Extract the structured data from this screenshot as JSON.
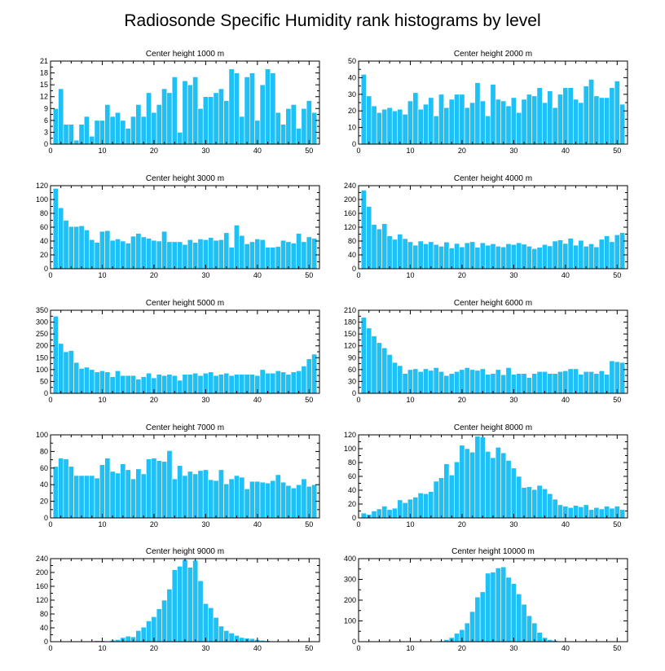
{
  "figure_title": "Radiosonde Specific Humidity rank histograms by level",
  "colors": {
    "bar": "#1ec0f5",
    "axis": "#000000",
    "background": "#ffffff"
  },
  "chart_data": [
    {
      "type": "bar",
      "title": "Center height 1000 m",
      "x": [
        1,
        2,
        3,
        4,
        5,
        6,
        7,
        8,
        9,
        10,
        11,
        12,
        13,
        14,
        15,
        16,
        17,
        18,
        19,
        20,
        21,
        22,
        23,
        24,
        25,
        26,
        27,
        28,
        29,
        30,
        31,
        32,
        33,
        34,
        35,
        36,
        37,
        38,
        39,
        40,
        41,
        42,
        43,
        44,
        45,
        46,
        47,
        48,
        49,
        50,
        51
      ],
      "values": [
        9,
        14,
        5,
        5,
        1,
        5,
        7,
        2,
        6,
        6,
        10,
        7,
        8,
        6,
        4,
        7,
        10,
        7,
        13,
        8,
        10,
        14,
        13,
        17,
        3,
        16,
        15,
        17,
        9,
        12,
        12,
        13,
        14,
        11,
        19,
        18,
        7,
        17,
        18,
        6,
        15,
        19,
        18,
        8,
        5,
        9,
        10,
        4,
        9,
        11,
        8
      ],
      "xlim": [
        0,
        52
      ],
      "ylim": [
        0,
        21
      ],
      "xticks": [
        0,
        10,
        20,
        30,
        40,
        50
      ],
      "yticks": [
        0,
        3,
        6,
        9,
        12,
        15,
        18,
        21
      ]
    },
    {
      "type": "bar",
      "title": "Center height 2000 m",
      "x": [
        1,
        2,
        3,
        4,
        5,
        6,
        7,
        8,
        9,
        10,
        11,
        12,
        13,
        14,
        15,
        16,
        17,
        18,
        19,
        20,
        21,
        22,
        23,
        24,
        25,
        26,
        27,
        28,
        29,
        30,
        31,
        32,
        33,
        34,
        35,
        36,
        37,
        38,
        39,
        40,
        41,
        42,
        43,
        44,
        45,
        46,
        47,
        48,
        49,
        50,
        51
      ],
      "values": [
        42,
        29,
        23,
        19,
        21,
        22,
        20,
        21,
        18,
        26,
        31,
        21,
        24,
        28,
        17,
        30,
        22,
        27,
        30,
        30,
        22,
        25,
        37,
        26,
        17,
        36,
        27,
        26,
        23,
        28,
        19,
        27,
        30,
        29,
        34,
        25,
        32,
        22,
        30,
        34,
        34,
        27,
        25,
        35,
        39,
        29,
        28,
        28,
        34,
        38,
        24
      ],
      "xlim": [
        0,
        52
      ],
      "ylim": [
        0,
        50
      ],
      "xticks": [
        0,
        10,
        20,
        30,
        40,
        50
      ],
      "yticks": [
        0,
        10,
        20,
        30,
        40,
        50
      ]
    },
    {
      "type": "bar",
      "title": "Center height 3000 m",
      "x": [
        1,
        2,
        3,
        4,
        5,
        6,
        7,
        8,
        9,
        10,
        11,
        12,
        13,
        14,
        15,
        16,
        17,
        18,
        19,
        20,
        21,
        22,
        23,
        24,
        25,
        26,
        27,
        28,
        29,
        30,
        31,
        32,
        33,
        34,
        35,
        36,
        37,
        38,
        39,
        40,
        41,
        42,
        43,
        44,
        45,
        46,
        47,
        48,
        49,
        50,
        51
      ],
      "values": [
        116,
        88,
        70,
        61,
        61,
        62,
        56,
        42,
        38,
        54,
        55,
        41,
        43,
        40,
        37,
        47,
        51,
        46,
        44,
        41,
        40,
        54,
        39,
        39,
        39,
        35,
        42,
        38,
        43,
        42,
        45,
        41,
        42,
        52,
        31,
        63,
        48,
        36,
        39,
        43,
        42,
        31,
        31,
        32,
        41,
        39,
        37,
        51,
        39,
        46,
        44
      ],
      "xlim": [
        0,
        52
      ],
      "ylim": [
        0,
        120
      ],
      "xticks": [
        0,
        10,
        20,
        30,
        40,
        50
      ],
      "yticks": [
        0,
        20,
        40,
        60,
        80,
        100,
        120
      ]
    },
    {
      "type": "bar",
      "title": "Center height 4000 m",
      "x": [
        1,
        2,
        3,
        4,
        5,
        6,
        7,
        8,
        9,
        10,
        11,
        12,
        13,
        14,
        15,
        16,
        17,
        18,
        19,
        20,
        21,
        22,
        23,
        24,
        25,
        26,
        27,
        28,
        29,
        30,
        31,
        32,
        33,
        34,
        35,
        36,
        37,
        38,
        39,
        40,
        41,
        42,
        43,
        44,
        45,
        46,
        47,
        48,
        49,
        50,
        51
      ],
      "values": [
        227,
        180,
        128,
        115,
        130,
        95,
        85,
        100,
        87,
        78,
        68,
        80,
        72,
        78,
        70,
        65,
        77,
        60,
        73,
        63,
        75,
        78,
        62,
        75,
        68,
        72,
        65,
        63,
        72,
        70,
        75,
        71,
        65,
        58,
        62,
        70,
        66,
        80,
        83,
        73,
        88,
        68,
        82,
        65,
        72,
        63,
        85,
        95,
        78,
        98,
        104
      ],
      "xlim": [
        0,
        52
      ],
      "ylim": [
        0,
        240
      ],
      "xticks": [
        0,
        10,
        20,
        30,
        40,
        50
      ],
      "yticks": [
        0,
        40,
        80,
        120,
        160,
        200,
        240
      ]
    },
    {
      "type": "bar",
      "title": "Center height 5000 m",
      "x": [
        1,
        2,
        3,
        4,
        5,
        6,
        7,
        8,
        9,
        10,
        11,
        12,
        13,
        14,
        15,
        16,
        17,
        18,
        19,
        20,
        21,
        22,
        23,
        24,
        25,
        26,
        27,
        28,
        29,
        30,
        31,
        32,
        33,
        34,
        35,
        36,
        37,
        38,
        39,
        40,
        41,
        42,
        43,
        44,
        45,
        46,
        47,
        48,
        49,
        50,
        51
      ],
      "values": [
        325,
        210,
        175,
        180,
        130,
        105,
        110,
        100,
        90,
        95,
        90,
        70,
        95,
        75,
        75,
        75,
        60,
        70,
        85,
        65,
        80,
        75,
        80,
        75,
        55,
        80,
        80,
        85,
        75,
        85,
        90,
        75,
        80,
        85,
        75,
        80,
        80,
        80,
        80,
        75,
        100,
        85,
        85,
        95,
        90,
        80,
        90,
        95,
        115,
        145,
        165
      ],
      "xlim": [
        0,
        52
      ],
      "ylim": [
        0,
        350
      ],
      "xticks": [
        0,
        10,
        20,
        30,
        40,
        50
      ],
      "yticks": [
        0,
        50,
        100,
        150,
        200,
        250,
        300,
        350
      ]
    },
    {
      "type": "bar",
      "title": "Center height 6000 m",
      "x": [
        1,
        2,
        3,
        4,
        5,
        6,
        7,
        8,
        9,
        10,
        11,
        12,
        13,
        14,
        15,
        16,
        17,
        18,
        19,
        20,
        21,
        22,
        23,
        24,
        25,
        26,
        27,
        28,
        29,
        30,
        31,
        32,
        33,
        34,
        35,
        36,
        37,
        38,
        39,
        40,
        41,
        42,
        43,
        44,
        45,
        46,
        47,
        48,
        49,
        50,
        51
      ],
      "values": [
        192,
        165,
        145,
        128,
        115,
        98,
        78,
        70,
        50,
        60,
        62,
        55,
        62,
        58,
        65,
        55,
        45,
        50,
        55,
        60,
        65,
        60,
        58,
        62,
        48,
        50,
        60,
        47,
        65,
        48,
        50,
        50,
        40,
        50,
        55,
        55,
        50,
        50,
        55,
        57,
        62,
        62,
        48,
        55,
        55,
        50,
        57,
        48,
        82,
        80,
        78
      ],
      "xlim": [
        0,
        52
      ],
      "ylim": [
        0,
        210
      ],
      "xticks": [
        0,
        10,
        20,
        30,
        40,
        50
      ],
      "yticks": [
        0,
        30,
        60,
        90,
        120,
        150,
        180,
        210
      ]
    },
    {
      "type": "bar",
      "title": "Center height 7000 m",
      "x": [
        1,
        2,
        3,
        4,
        5,
        6,
        7,
        8,
        9,
        10,
        11,
        12,
        13,
        14,
        15,
        16,
        17,
        18,
        19,
        20,
        21,
        22,
        23,
        24,
        25,
        26,
        27,
        28,
        29,
        30,
        31,
        32,
        33,
        34,
        35,
        36,
        37,
        38,
        39,
        40,
        41,
        42,
        43,
        44,
        45,
        46,
        47,
        48,
        49,
        50,
        51
      ],
      "values": [
        62,
        72,
        71,
        62,
        51,
        51,
        51,
        51,
        48,
        64,
        72,
        56,
        54,
        65,
        58,
        47,
        59,
        53,
        71,
        72,
        69,
        68,
        81,
        47,
        63,
        51,
        56,
        53,
        57,
        58,
        46,
        45,
        58,
        41,
        47,
        51,
        49,
        35,
        44,
        44,
        43,
        42,
        45,
        52,
        43,
        39,
        36,
        40,
        47,
        38,
        40
      ],
      "xlim": [
        0,
        52
      ],
      "ylim": [
        0,
        100
      ],
      "xticks": [
        0,
        10,
        20,
        30,
        40,
        50
      ],
      "yticks": [
        0,
        20,
        40,
        60,
        80,
        100
      ]
    },
    {
      "type": "bar",
      "title": "Center height 8000 m",
      "x": [
        1,
        2,
        3,
        4,
        5,
        6,
        7,
        8,
        9,
        10,
        11,
        12,
        13,
        14,
        15,
        16,
        17,
        18,
        19,
        20,
        21,
        22,
        23,
        24,
        25,
        26,
        27,
        28,
        29,
        30,
        31,
        32,
        33,
        34,
        35,
        36,
        37,
        38,
        39,
        40,
        41,
        42,
        43,
        44,
        45,
        46,
        47,
        48,
        49,
        50,
        51
      ],
      "values": [
        7,
        5,
        10,
        13,
        17,
        12,
        14,
        26,
        22,
        27,
        30,
        36,
        35,
        38,
        53,
        58,
        78,
        62,
        81,
        105,
        100,
        95,
        118,
        117,
        96,
        87,
        102,
        94,
        83,
        72,
        60,
        44,
        45,
        41,
        47,
        42,
        35,
        27,
        19,
        17,
        15,
        18,
        16,
        19,
        12,
        15,
        13,
        17,
        14,
        17,
        12
      ],
      "xlim": [
        0,
        52
      ],
      "ylim": [
        0,
        120
      ],
      "xticks": [
        0,
        10,
        20,
        30,
        40,
        50
      ],
      "yticks": [
        0,
        20,
        40,
        60,
        80,
        100,
        120
      ]
    },
    {
      "type": "bar",
      "title": "Center height 9000 m",
      "x": [
        1,
        2,
        3,
        4,
        5,
        6,
        7,
        8,
        9,
        10,
        11,
        12,
        13,
        14,
        15,
        16,
        17,
        18,
        19,
        20,
        21,
        22,
        23,
        24,
        25,
        26,
        27,
        28,
        29,
        30,
        31,
        32,
        33,
        34,
        35,
        36,
        37,
        38,
        39,
        40,
        41,
        42,
        43,
        44,
        45,
        46,
        47,
        48,
        49,
        50,
        51
      ],
      "values": [
        0,
        0,
        0,
        1,
        2,
        2,
        1,
        2,
        3,
        3,
        2,
        4,
        6,
        12,
        16,
        14,
        32,
        42,
        60,
        72,
        95,
        120,
        152,
        208,
        218,
        237,
        215,
        235,
        176,
        110,
        98,
        70,
        45,
        32,
        25,
        18,
        12,
        10,
        9,
        6,
        4,
        3,
        2,
        2,
        1,
        1,
        0,
        0,
        0,
        0,
        0
      ],
      "xlim": [
        0,
        52
      ],
      "ylim": [
        0,
        240
      ],
      "xticks": [
        0,
        10,
        20,
        30,
        40,
        50
      ],
      "yticks": [
        0,
        40,
        80,
        120,
        160,
        200,
        240
      ]
    },
    {
      "type": "bar",
      "title": "Center height 10000 m",
      "x": [
        1,
        2,
        3,
        4,
        5,
        6,
        7,
        8,
        9,
        10,
        11,
        12,
        13,
        14,
        15,
        16,
        17,
        18,
        19,
        20,
        21,
        22,
        23,
        24,
        25,
        26,
        27,
        28,
        29,
        30,
        31,
        32,
        33,
        34,
        35,
        36,
        37,
        38,
        39,
        40,
        41,
        42,
        43,
        44,
        45,
        46,
        47,
        48,
        49,
        50,
        51
      ],
      "values": [
        0,
        0,
        0,
        0,
        0,
        0,
        0,
        0,
        0,
        0,
        0,
        1,
        1,
        1,
        2,
        4,
        10,
        20,
        40,
        58,
        90,
        145,
        215,
        240,
        330,
        335,
        355,
        360,
        310,
        280,
        230,
        180,
        125,
        90,
        45,
        20,
        10,
        6,
        3,
        1,
        1,
        0,
        0,
        0,
        0,
        0,
        0,
        0,
        0,
        0,
        0
      ],
      "xlim": [
        0,
        52
      ],
      "ylim": [
        0,
        400
      ],
      "xticks": [
        0,
        10,
        20,
        30,
        40,
        50
      ],
      "yticks": [
        0,
        100,
        200,
        300,
        400
      ]
    }
  ]
}
